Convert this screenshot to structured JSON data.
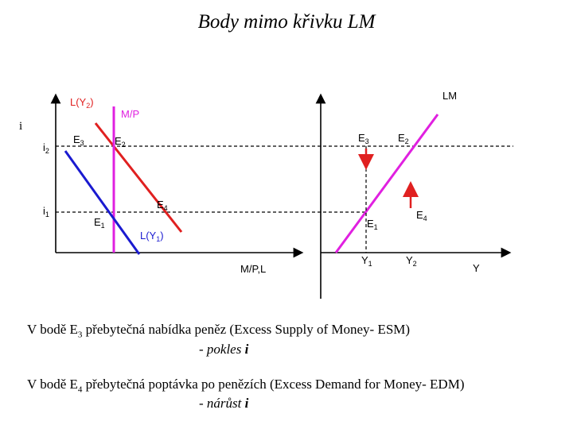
{
  "title": "Body mimo křivku LM",
  "left_graph": {
    "y_axis": "i",
    "x_axis": "M/P,L",
    "ticks": {
      "i2": "i",
      "i2_sub": "2",
      "i1": "i",
      "i1_sub": "1"
    },
    "curves": {
      "L_Y2": "L(Y",
      "L_Y2_sub": "2",
      "L_Y2_end": ")",
      "MP": "M/P",
      "L_Y1": "L(Y",
      "L_Y1_sub": "1",
      "L_Y1_end": ")"
    },
    "points": {
      "E3": "E",
      "E3_sub": "3",
      "E2": "E",
      "E2_sub": "2",
      "E4": "E",
      "E4_sub": "4",
      "E1": "E",
      "E1_sub": "1"
    }
  },
  "right_graph": {
    "curve": "LM",
    "x_axis": "Y",
    "ticks": {
      "Y1": "Y",
      "Y1_sub": "1",
      "Y2": "Y",
      "Y2_sub": "2"
    },
    "points": {
      "E3": "E",
      "E3_sub": "3",
      "E2": "E",
      "E2_sub": "2",
      "E1": "E",
      "E1_sub": "1",
      "E4": "E",
      "E4_sub": "4"
    }
  },
  "notes": [
    {
      "prefix": "V bodě E",
      "sub": "3",
      "text": " přebytečná nabídka peněz (Excess Supply of Money- ESM)",
      "effect": "- pokles ",
      "effect_var": "i"
    },
    {
      "prefix": "V bodě E",
      "sub": "4",
      "text": " přebytečná poptávka po penězích (Excess Demand for Money- EDM)",
      "effect": "- nárůst ",
      "effect_var": "i"
    }
  ],
  "colors": {
    "L_Y2": "#e02020",
    "L_Y1": "#1a1ad0",
    "MP": "#e020e0",
    "LM": "#e020e0",
    "arrow": "#e02020"
  }
}
